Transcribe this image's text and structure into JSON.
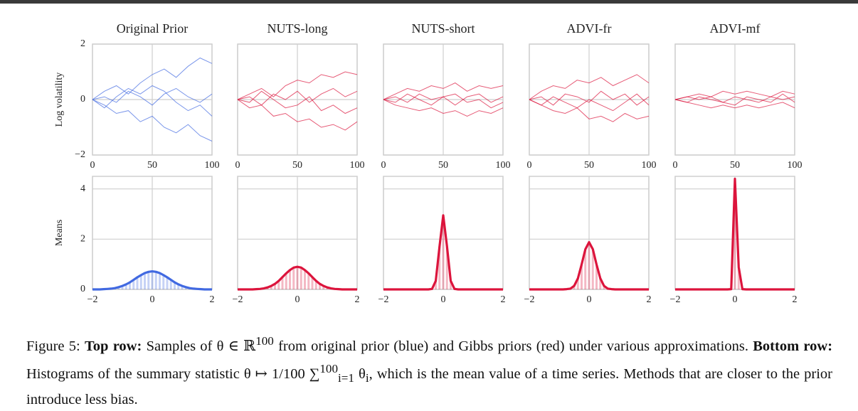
{
  "chart_data": [
    {
      "type": "line",
      "title": "Original Prior",
      "ylabel": "Log volatility",
      "color": "#4169e1",
      "xlim": [
        0,
        100
      ],
      "xticks": [
        0,
        50,
        100
      ],
      "ylim": [
        -2,
        2
      ],
      "yticks": [
        {
          "value": -2,
          "label": "−2"
        },
        0,
        2
      ],
      "ytick_labels": true,
      "grid": true,
      "x": [
        0,
        10,
        20,
        30,
        40,
        50,
        60,
        70,
        80,
        90,
        100
      ],
      "series": [
        {
          "values": [
            0,
            0.3,
            0.5,
            0.2,
            0.6,
            0.9,
            1.1,
            0.8,
            1.2,
            1.5,
            1.3
          ]
        },
        {
          "values": [
            0,
            -0.2,
            -0.5,
            -0.4,
            -0.8,
            -0.6,
            -1.0,
            -1.2,
            -0.9,
            -1.3,
            -1.5
          ]
        },
        {
          "values": [
            0,
            0.1,
            -0.1,
            0.3,
            0.1,
            -0.2,
            0.2,
            0.4,
            0.1,
            -0.1,
            0.2
          ]
        },
        {
          "values": [
            0,
            -0.3,
            0.1,
            0.4,
            0.2,
            0.5,
            0.3,
            -0.1,
            -0.4,
            -0.2,
            -0.6
          ]
        }
      ]
    },
    {
      "type": "line",
      "title": "NUTS-long",
      "color": "#dc143c",
      "xlim": [
        0,
        100
      ],
      "xticks": [
        0,
        50,
        100
      ],
      "ylim": [
        -2,
        2
      ],
      "yticks": [
        -2,
        0,
        2
      ],
      "ytick_labels": false,
      "grid": true,
      "x": [
        0,
        10,
        20,
        30,
        40,
        50,
        60,
        70,
        80,
        90,
        100
      ],
      "series": [
        {
          "values": [
            0,
            0.2,
            0.4,
            0.1,
            0.5,
            0.7,
            0.6,
            0.9,
            0.8,
            1.0,
            0.9
          ]
        },
        {
          "values": [
            0,
            -0.3,
            -0.2,
            -0.6,
            -0.5,
            -0.8,
            -0.7,
            -1.0,
            -0.9,
            -1.1,
            -0.8
          ]
        },
        {
          "values": [
            0,
            0.1,
            -0.2,
            0.2,
            0.0,
            0.3,
            -0.1,
            0.2,
            0.4,
            0.1,
            0.3
          ]
        },
        {
          "values": [
            0,
            -0.1,
            0.3,
            0.0,
            -0.3,
            -0.2,
            0.1,
            -0.4,
            -0.2,
            -0.5,
            -0.3
          ]
        }
      ]
    },
    {
      "type": "line",
      "title": "NUTS-short",
      "color": "#dc143c",
      "xlim": [
        0,
        100
      ],
      "xticks": [
        0,
        50,
        100
      ],
      "ylim": [
        -2,
        2
      ],
      "yticks": [
        -2,
        0,
        2
      ],
      "ytick_labels": false,
      "grid": true,
      "x": [
        0,
        10,
        20,
        30,
        40,
        50,
        60,
        70,
        80,
        90,
        100
      ],
      "series": [
        {
          "values": [
            0,
            0.2,
            0.4,
            0.3,
            0.5,
            0.4,
            0.6,
            0.3,
            0.5,
            0.4,
            0.5
          ]
        },
        {
          "values": [
            0,
            -0.2,
            -0.3,
            -0.4,
            -0.3,
            -0.5,
            -0.4,
            -0.6,
            -0.4,
            -0.5,
            -0.3
          ]
        },
        {
          "values": [
            0,
            0.1,
            -0.1,
            0.2,
            0.0,
            0.1,
            -0.2,
            0.1,
            0.2,
            -0.1,
            0.1
          ]
        },
        {
          "values": [
            0,
            -0.1,
            0.2,
            0.0,
            -0.2,
            0.1,
            0.2,
            -0.1,
            0.0,
            -0.3,
            -0.1
          ]
        }
      ]
    },
    {
      "type": "line",
      "title": "ADVI-fr",
      "color": "#dc143c",
      "xlim": [
        0,
        100
      ],
      "xticks": [
        0,
        50,
        100
      ],
      "ylim": [
        -2,
        2
      ],
      "yticks": [
        -2,
        0,
        2
      ],
      "ytick_labels": false,
      "grid": true,
      "x": [
        0,
        10,
        20,
        30,
        40,
        50,
        60,
        70,
        80,
        90,
        100
      ],
      "series": [
        {
          "values": [
            0,
            0.3,
            0.5,
            0.4,
            0.7,
            0.6,
            0.8,
            0.5,
            0.7,
            0.9,
            0.6
          ]
        },
        {
          "values": [
            0,
            -0.2,
            -0.4,
            -0.5,
            -0.3,
            -0.7,
            -0.6,
            -0.8,
            -0.5,
            -0.7,
            -0.6
          ]
        },
        {
          "values": [
            0,
            0.1,
            -0.2,
            0.2,
            0.1,
            -0.1,
            0.3,
            0.0,
            0.2,
            -0.2,
            0.1
          ]
        },
        {
          "values": [
            0,
            -0.2,
            0.1,
            -0.1,
            -0.3,
            0.0,
            -0.2,
            -0.4,
            -0.1,
            0.2,
            -0.2
          ]
        }
      ]
    },
    {
      "type": "line",
      "title": "ADVI-mf",
      "color": "#dc143c",
      "xlim": [
        0,
        100
      ],
      "xticks": [
        0,
        50,
        100
      ],
      "ylim": [
        -2,
        2
      ],
      "yticks": [
        -2,
        0,
        2
      ],
      "ytick_labels": false,
      "grid": true,
      "x": [
        0,
        10,
        20,
        30,
        40,
        50,
        60,
        70,
        80,
        90,
        100
      ],
      "series": [
        {
          "values": [
            0,
            0.1,
            0.2,
            0.1,
            0.3,
            0.2,
            0.3,
            0.2,
            0.1,
            0.3,
            0.2
          ]
        },
        {
          "values": [
            0,
            -0.1,
            -0.2,
            -0.3,
            -0.2,
            -0.3,
            -0.2,
            -0.3,
            -0.2,
            -0.1,
            -0.3
          ]
        },
        {
          "values": [
            0,
            0.1,
            0.0,
            0.1,
            -0.1,
            0.1,
            0.0,
            -0.1,
            0.1,
            0.0,
            0.1
          ]
        },
        {
          "values": [
            0,
            -0.1,
            0.1,
            0.0,
            -0.1,
            -0.2,
            0.1,
            0.0,
            -0.1,
            0.2,
            -0.1
          ]
        }
      ]
    },
    {
      "type": "density",
      "ylabel": "Means",
      "color": "#4169e1",
      "xlim": [
        -2,
        2
      ],
      "xticks": [
        {
          "value": -2,
          "label": "−2"
        },
        0,
        2
      ],
      "ylim": [
        0,
        4.5
      ],
      "yticks": [
        0,
        2,
        4
      ],
      "ytick_labels": true,
      "grid": true,
      "x": [
        -2,
        -1.875,
        -1.75,
        -1.625,
        -1.5,
        -1.375,
        -1.25,
        -1.125,
        -1,
        -0.875,
        -0.75,
        -0.625,
        -0.5,
        -0.375,
        -0.25,
        -0.125,
        0,
        0.125,
        0.25,
        0.375,
        0.5,
        0.625,
        0.75,
        0.875,
        1,
        1.125,
        1.25,
        1.375,
        1.5,
        1.625,
        1.75,
        1.875,
        2
      ],
      "values": [
        0,
        0,
        0,
        0.01,
        0.02,
        0.03,
        0.05,
        0.09,
        0.14,
        0.2,
        0.28,
        0.38,
        0.48,
        0.57,
        0.65,
        0.7,
        0.72,
        0.7,
        0.65,
        0.57,
        0.48,
        0.38,
        0.28,
        0.2,
        0.14,
        0.09,
        0.05,
        0.03,
        0.02,
        0.01,
        0,
        0,
        0
      ]
    },
    {
      "type": "density",
      "color": "#dc143c",
      "xlim": [
        -2,
        2
      ],
      "xticks": [
        {
          "value": -2,
          "label": "−2"
        },
        0,
        2
      ],
      "ylim": [
        0,
        4.5
      ],
      "yticks": [
        0,
        2,
        4
      ],
      "ytick_labels": false,
      "grid": true,
      "x": [
        -2,
        -1.875,
        -1.75,
        -1.625,
        -1.5,
        -1.375,
        -1.25,
        -1.125,
        -1,
        -0.875,
        -0.75,
        -0.625,
        -0.5,
        -0.375,
        -0.25,
        -0.125,
        0,
        0.125,
        0.25,
        0.375,
        0.5,
        0.625,
        0.75,
        0.875,
        1,
        1.125,
        1.25,
        1.375,
        1.5,
        1.625,
        1.75,
        1.875,
        2
      ],
      "values": [
        0,
        0,
        0,
        0,
        0,
        0.01,
        0.02,
        0.04,
        0.08,
        0.14,
        0.22,
        0.34,
        0.49,
        0.64,
        0.77,
        0.87,
        0.9,
        0.87,
        0.77,
        0.64,
        0.49,
        0.34,
        0.22,
        0.14,
        0.08,
        0.04,
        0.02,
        0.01,
        0,
        0,
        0,
        0,
        0
      ]
    },
    {
      "type": "density",
      "color": "#dc143c",
      "xlim": [
        -2,
        2
      ],
      "xticks": [
        {
          "value": -2,
          "label": "−2"
        },
        0,
        2
      ],
      "ylim": [
        0,
        4.5
      ],
      "yticks": [
        0,
        2,
        4
      ],
      "ytick_labels": false,
      "grid": true,
      "x": [
        -2,
        -1.875,
        -1.75,
        -1.625,
        -1.5,
        -1.375,
        -1.25,
        -1.125,
        -1,
        -0.875,
        -0.75,
        -0.625,
        -0.5,
        -0.375,
        -0.25,
        -0.125,
        0,
        0.125,
        0.25,
        0.375,
        0.5,
        0.625,
        0.75,
        0.875,
        1,
        1.125,
        1.25,
        1.375,
        1.5,
        1.625,
        1.75,
        1.875,
        2
      ],
      "values": [
        0,
        0,
        0,
        0,
        0,
        0,
        0,
        0,
        0,
        0,
        0,
        0,
        0,
        0.02,
        0.34,
        1.71,
        2.95,
        1.71,
        0.34,
        0.02,
        0,
        0,
        0,
        0,
        0,
        0,
        0,
        0,
        0,
        0,
        0,
        0,
        0
      ]
    },
    {
      "type": "density",
      "color": "#dc143c",
      "xlim": [
        -2,
        2
      ],
      "xticks": [
        {
          "value": -2,
          "label": "−2"
        },
        0,
        2
      ],
      "ylim": [
        0,
        4.5
      ],
      "yticks": [
        0,
        2,
        4
      ],
      "ytick_labels": false,
      "grid": true,
      "x": [
        -2,
        -1.875,
        -1.75,
        -1.625,
        -1.5,
        -1.375,
        -1.25,
        -1.125,
        -1,
        -0.875,
        -0.75,
        -0.625,
        -0.5,
        -0.375,
        -0.25,
        -0.125,
        0,
        0.125,
        0.25,
        0.375,
        0.5,
        0.625,
        0.75,
        0.875,
        1,
        1.125,
        1.25,
        1.375,
        1.5,
        1.625,
        1.75,
        1.875,
        2
      ],
      "values": [
        0,
        0,
        0,
        0,
        0,
        0,
        0,
        0,
        0,
        0,
        0.01,
        0.03,
        0.14,
        0.44,
        0.99,
        1.6,
        1.88,
        1.6,
        0.99,
        0.44,
        0.14,
        0.03,
        0.01,
        0,
        0,
        0,
        0,
        0,
        0,
        0,
        0,
        0,
        0
      ]
    },
    {
      "type": "density",
      "color": "#dc143c",
      "xlim": [
        -2,
        2
      ],
      "xticks": [
        {
          "value": -2,
          "label": "−2"
        },
        0,
        2
      ],
      "ylim": [
        0,
        4.5
      ],
      "yticks": [
        0,
        2,
        4
      ],
      "ytick_labels": false,
      "grid": true,
      "x": [
        -2,
        -1.875,
        -1.75,
        -1.625,
        -1.5,
        -1.375,
        -1.25,
        -1.125,
        -1,
        -0.875,
        -0.75,
        -0.625,
        -0.5,
        -0.375,
        -0.25,
        -0.125,
        0,
        0.125,
        0.25,
        0.375,
        0.5,
        0.625,
        0.75,
        0.875,
        1,
        1.125,
        1.25,
        1.375,
        1.5,
        1.625,
        1.75,
        1.875,
        2
      ],
      "values": [
        0,
        0,
        0,
        0,
        0,
        0,
        0,
        0,
        0,
        0,
        0,
        0,
        0,
        0,
        0,
        0.01,
        4.4,
        0.89,
        0.01,
        0,
        0,
        0,
        0,
        0,
        0,
        0,
        0,
        0,
        0,
        0,
        0,
        0,
        0
      ]
    }
  ],
  "caption": {
    "label": "Figure 5:",
    "bold1": "Top row:",
    "text1": "Samples of θ ∈ ℝ",
    "sup1": "100",
    "text2": " from original prior (blue) and Gibbs priors (red) under various approximations.",
    "bold2": "Bottom row:",
    "text3": "Histograms of the summary statistic θ ↦ 1/100 ∑",
    "sup2": "100",
    "sub2": "i=1",
    "text4": " θ",
    "sub3": "i",
    "text5": ", which is the mean value of a time series. Methods that are closer to the prior introduce less bias."
  }
}
